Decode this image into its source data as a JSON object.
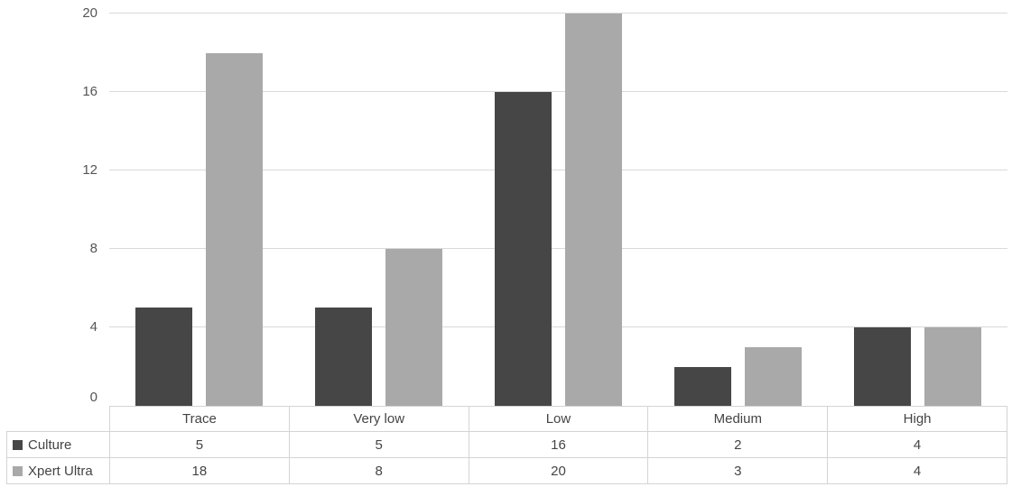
{
  "chart_data": {
    "type": "bar",
    "title": "",
    "categories": [
      "Trace",
      "Very low",
      "Low",
      "Medium",
      "High"
    ],
    "series": [
      {
        "name": "Culture",
        "color": "#464646",
        "values": [
          5,
          5,
          16,
          2,
          4
        ]
      },
      {
        "name": "Xpert Ultra",
        "color": "#a9a9a9",
        "values": [
          18,
          8,
          20,
          3,
          4
        ]
      }
    ],
    "ylim": [
      0,
      20
    ],
    "yticks": [
      0,
      4,
      8,
      12,
      16,
      20
    ],
    "grid": true,
    "legend_position": "data-table-left",
    "xlabel": "",
    "ylabel": ""
  },
  "colors": {
    "gridline": "#d9d9d9",
    "table_border": "#d4d4d4",
    "axis_text": "#555555",
    "table_text": "#444444",
    "background": "#ffffff"
  }
}
